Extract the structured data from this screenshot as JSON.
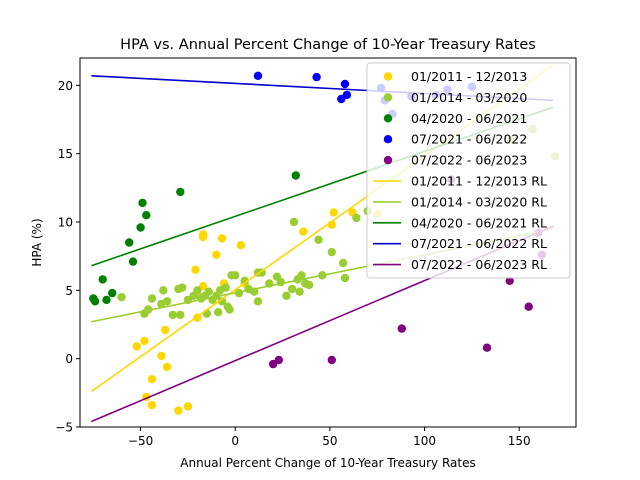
{
  "chart_data": {
    "type": "scatter",
    "title": "HPA vs. Annual Percent Change of 10-Year Treasury Rates",
    "xlabel": "Annual Percent Change of 10-Year Treasury Rates",
    "ylabel": "HPA (%)",
    "xlim": [
      -82,
      180
    ],
    "ylim": [
      -5,
      22
    ],
    "xticks": [
      -50,
      0,
      50,
      100,
      150
    ],
    "yticks": [
      -5,
      0,
      5,
      10,
      15,
      20
    ],
    "grid": false,
    "legend_position": "top-right",
    "series": [
      {
        "name": "01/2011 - 12/2013",
        "kind": "scatter",
        "color": "#FFD700",
        "points": [
          [
            -30,
            -3.8
          ],
          [
            -25,
            -3.5
          ],
          [
            -44,
            -3.4
          ],
          [
            -47,
            -2.8
          ],
          [
            -44,
            -1.5
          ],
          [
            -36,
            -0.6
          ],
          [
            -39,
            0.2
          ],
          [
            -52,
            0.9
          ],
          [
            -48,
            1.3
          ],
          [
            -37,
            2.1
          ],
          [
            -20,
            3.0
          ],
          [
            -18,
            4.5
          ],
          [
            -17,
            5.3
          ],
          [
            -21,
            6.5
          ],
          [
            -10,
            7.6
          ],
          [
            -17,
            8.9
          ],
          [
            -17,
            9.1
          ],
          [
            -7,
            8.8
          ],
          [
            3,
            8.3
          ],
          [
            36,
            9.3
          ],
          [
            51,
            9.8
          ],
          [
            52,
            10.7
          ],
          [
            62,
            10.7
          ],
          [
            75,
            10.6
          ],
          [
            -6,
            5.5
          ],
          [
            5,
            5.5
          ]
        ]
      },
      {
        "name": "01/2014 - 03/2020",
        "kind": "scatter",
        "color": "#9ACD32",
        "points": [
          [
            -60,
            4.5
          ],
          [
            -44,
            4.4
          ],
          [
            -46,
            3.6
          ],
          [
            -48,
            3.3
          ],
          [
            -39,
            4.0
          ],
          [
            -38,
            5.0
          ],
          [
            -36,
            4.2
          ],
          [
            -33,
            3.2
          ],
          [
            -30,
            5.1
          ],
          [
            -29,
            3.2
          ],
          [
            -28,
            5.2
          ],
          [
            -25,
            4.3
          ],
          [
            -22,
            4.6
          ],
          [
            -20,
            5.0
          ],
          [
            -18,
            4.4
          ],
          [
            -16,
            4.6
          ],
          [
            -15,
            3.3
          ],
          [
            -14,
            4.9
          ],
          [
            -12,
            4.3
          ],
          [
            -10,
            4.6
          ],
          [
            -9,
            3.4
          ],
          [
            -8,
            5.0
          ],
          [
            -7,
            4.2
          ],
          [
            -5,
            5.2
          ],
          [
            -4,
            3.8
          ],
          [
            -3,
            3.6
          ],
          [
            -2,
            6.1
          ],
          [
            0,
            6.1
          ],
          [
            2,
            4.8
          ],
          [
            5,
            5.7
          ],
          [
            7,
            5.1
          ],
          [
            10,
            4.9
          ],
          [
            12,
            4.2
          ],
          [
            12,
            6.3
          ],
          [
            14,
            6.3
          ],
          [
            18,
            5.5
          ],
          [
            22,
            6.0
          ],
          [
            24,
            5.6
          ],
          [
            27,
            4.6
          ],
          [
            30,
            5.1
          ],
          [
            31,
            10.0
          ],
          [
            33,
            5.8
          ],
          [
            34,
            4.9
          ],
          [
            35,
            6.1
          ],
          [
            37,
            5.5
          ],
          [
            39,
            5.4
          ],
          [
            44,
            8.7
          ],
          [
            46,
            6.1
          ],
          [
            51,
            7.8
          ],
          [
            57,
            7.0
          ],
          [
            58,
            5.9
          ],
          [
            64,
            10.3
          ],
          [
            70,
            10.8
          ],
          [
            145,
            16.0
          ],
          [
            157,
            16.8
          ],
          [
            169,
            14.8
          ]
        ]
      },
      {
        "name": "04/2020 - 06/2021",
        "kind": "scatter",
        "color": "#008000",
        "points": [
          [
            -75,
            4.4
          ],
          [
            -74,
            4.2
          ],
          [
            -70,
            5.8
          ],
          [
            -68,
            4.3
          ],
          [
            -65,
            4.8
          ],
          [
            -56,
            8.5
          ],
          [
            -54,
            7.1
          ],
          [
            -50,
            9.6
          ],
          [
            -49,
            11.4
          ],
          [
            -47,
            10.5
          ],
          [
            -29,
            12.2
          ],
          [
            32,
            13.4
          ]
        ]
      },
      {
        "name": "07/2021 - 06/2022",
        "kind": "scatter",
        "color": "#0000FF",
        "points": [
          [
            12,
            20.7
          ],
          [
            43,
            20.6
          ],
          [
            56,
            19.0
          ],
          [
            58,
            20.1
          ],
          [
            59,
            19.3
          ],
          [
            77,
            19.8
          ],
          [
            79,
            18.9
          ],
          [
            83,
            17.9
          ],
          [
            93,
            19.2
          ],
          [
            106,
            19.3
          ],
          [
            112,
            19.7
          ],
          [
            125,
            19.9
          ]
        ]
      },
      {
        "name": "07/2022 - 06/2023",
        "kind": "scatter",
        "color": "#800080",
        "points": [
          [
            20,
            -0.4
          ],
          [
            23,
            -0.1
          ],
          [
            51,
            -0.1
          ],
          [
            88,
            2.2
          ],
          [
            114,
            13.1
          ],
          [
            133,
            0.8
          ],
          [
            145,
            5.7
          ],
          [
            155,
            3.8
          ],
          [
            160,
            9.2
          ],
          [
            162,
            7.6
          ]
        ]
      },
      {
        "name": "01/2011 - 12/2013 RL",
        "kind": "line",
        "color": "#FFD700",
        "x": [
          -76,
          168
        ],
        "y": [
          -2.4,
          21.5
        ]
      },
      {
        "name": "01/2014 - 03/2020 RL",
        "kind": "line",
        "color": "#9ACD32",
        "x": [
          -76,
          168
        ],
        "y": [
          2.7,
          9.5
        ]
      },
      {
        "name": "04/2020 - 06/2021 RL",
        "kind": "line",
        "color": "#008000",
        "x": [
          -76,
          168
        ],
        "y": [
          6.8,
          18.4
        ]
      },
      {
        "name": "07/2021 - 06/2022 RL",
        "kind": "line",
        "color": "#0000CD",
        "x": [
          -76,
          168
        ],
        "y": [
          20.7,
          18.9
        ]
      },
      {
        "name": "07/2022 - 06/2023 RL",
        "kind": "line",
        "color": "#800080",
        "x": [
          -76,
          168
        ],
        "y": [
          -4.6,
          9.7
        ]
      }
    ]
  }
}
